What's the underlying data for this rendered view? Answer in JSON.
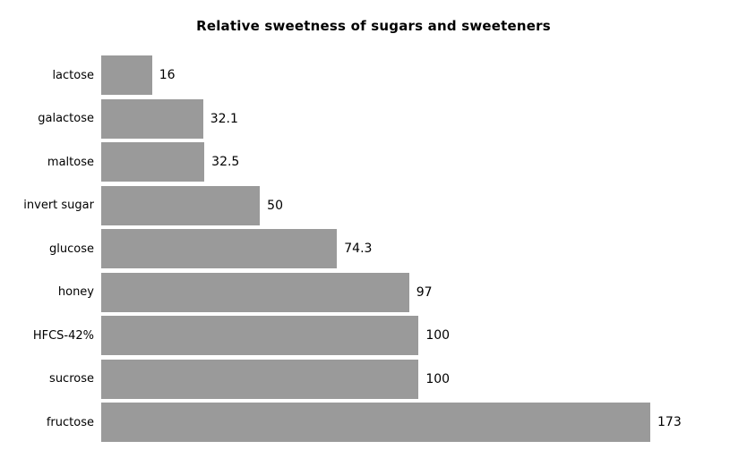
{
  "chart_data": {
    "type": "bar",
    "orientation": "horizontal",
    "title": "Relative sweetness of sugars and sweeteners",
    "categories": [
      "lactose",
      "galactose",
      "maltose",
      "invert sugar",
      "glucose",
      "honey",
      "HFCS-42%",
      "sucrose",
      "fructose"
    ],
    "values": [
      16,
      32.1,
      32.5,
      50,
      74.3,
      97,
      100,
      100,
      173
    ],
    "value_labels": [
      "16",
      "32.1",
      "32.5",
      "50",
      "74.3",
      "97",
      "100",
      "100",
      "173"
    ],
    "xlabel": "",
    "ylabel": "",
    "xlim": [
      0,
      173
    ],
    "grid": false,
    "legend_position": "none",
    "bar_color": "#9a9a9a",
    "text_color": "#000000",
    "background_color": "#ffffff"
  },
  "layout_note": "bars annotated with values at bar end"
}
